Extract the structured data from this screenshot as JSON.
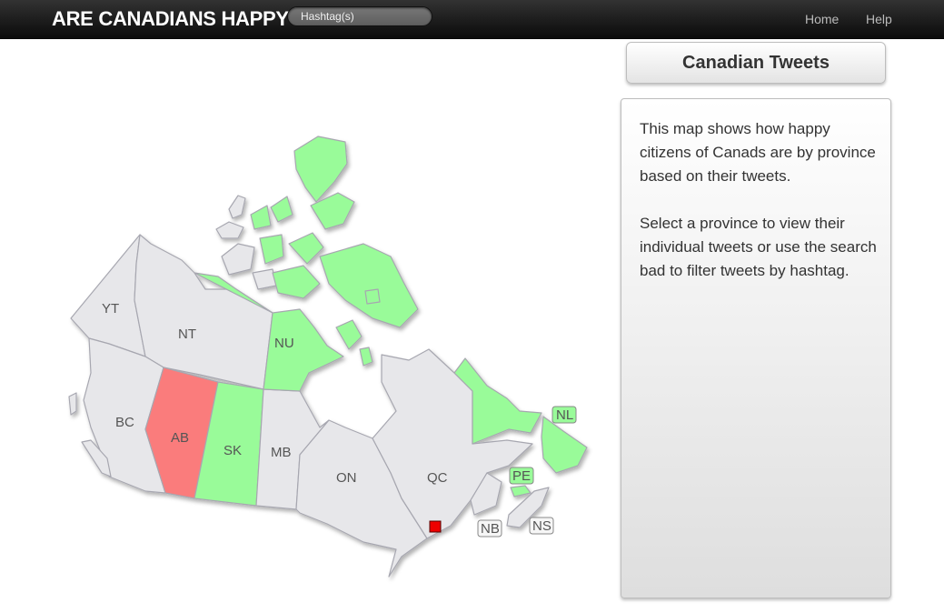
{
  "navbar": {
    "brand": "ARE CANADIANS HAPPY?",
    "search_placeholder": "Hashtag(s)",
    "links": [
      "Home",
      "Help"
    ]
  },
  "map": {
    "provinces": {
      "YT": {
        "label": "YT",
        "mood": "neutral"
      },
      "NT": {
        "label": "NT",
        "mood": "neutral"
      },
      "NU": {
        "label": "NU",
        "mood": "happy"
      },
      "BC": {
        "label": "BC",
        "mood": "neutral"
      },
      "AB": {
        "label": "AB",
        "mood": "unhappy"
      },
      "SK": {
        "label": "SK",
        "mood": "happy"
      },
      "MB": {
        "label": "MB",
        "mood": "neutral"
      },
      "ON": {
        "label": "ON",
        "mood": "neutral"
      },
      "QC": {
        "label": "QC",
        "mood": "neutral"
      },
      "NL": {
        "label": "NL",
        "mood": "happy"
      },
      "PE": {
        "label": "PE",
        "mood": "happy"
      },
      "NB": {
        "label": "NB",
        "mood": "neutral"
      },
      "NS": {
        "label": "NS",
        "mood": "neutral"
      }
    },
    "colors": {
      "happy": "#99fb99",
      "unhappy": "#fa7c7c",
      "neutral": "#e7e7ea",
      "marker": "#ee0000"
    }
  },
  "sidebar": {
    "title": "Canadian Tweets",
    "paragraphs": [
      "This map shows how happy citizens of Canads are by province based on their tweets.",
      "Select a province to view their individual tweets or use the search bad to filter tweets by hashtag."
    ]
  }
}
